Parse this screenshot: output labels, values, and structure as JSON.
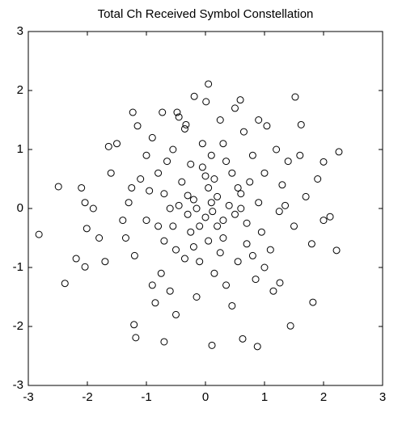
{
  "chart_data": {
    "type": "scatter",
    "title": "Total Ch Received Symbol Constellation",
    "x": [
      -2.82,
      -2.49,
      -2.38,
      -2.19,
      0.05,
      -0.19,
      0.01,
      0.59,
      1.52,
      2.26,
      2.22,
      0.11,
      0.88,
      -1.21,
      -1.18,
      -0.7,
      1.82,
      1.44,
      0.63,
      -1.23,
      -1.64,
      2.0,
      2.11,
      -2.04,
      -2.01,
      1.26,
      -0.73,
      -0.48,
      1.62,
      -0.33,
      1.04,
      -2.04,
      0.12,
      -0.3,
      0.45,
      -0.8,
      0.9,
      -0.1,
      0.3,
      -1.1,
      0.7,
      -0.5,
      1.3,
      -1.4,
      0.05,
      -0.25,
      0.6,
      -0.65,
      1.0,
      -0.9,
      0.2,
      -0.05,
      1.5,
      -1.6,
      0.35,
      -0.35,
      0.8,
      -0.75,
      1.2,
      -1.2,
      0.0,
      0.5,
      -0.45,
      0.15,
      -0.2,
      1.7,
      -1.8,
      0.25,
      -0.15,
      0.95,
      -0.95,
      0.65,
      -0.6,
      1.1,
      -1.0,
      0.4,
      -0.4,
      0.1,
      -0.1,
      0.75,
      -0.7,
      1.4,
      -1.3,
      0.55,
      -0.55,
      0.3,
      -0.3,
      1.8,
      -1.5,
      0.85,
      -0.85,
      0.2,
      -0.2,
      1.6,
      -1.7,
      0.5,
      -0.5,
      1.0,
      -1.0,
      0.0,
      0.05,
      0.7,
      -0.7,
      1.25,
      -1.25,
      0.45,
      -0.45,
      1.9,
      -1.9,
      0.9,
      -0.9,
      0.35,
      -0.35,
      1.15,
      -1.15,
      0.6,
      -0.6,
      0.25,
      -0.25,
      2.0,
      -2.1,
      0.15,
      -0.05,
      0.8,
      -0.8,
      1.35,
      -1.35,
      0.1,
      -0.15,
      0.55,
      -0.55,
      0.3
    ],
    "values": [
      -0.44,
      0.37,
      -1.27,
      -0.85,
      2.11,
      1.9,
      1.81,
      1.84,
      1.89,
      0.96,
      -0.71,
      -2.32,
      -2.34,
      -1.97,
      -2.19,
      -2.26,
      -1.59,
      -1.99,
      -2.21,
      1.63,
      1.05,
      0.79,
      -0.14,
      0.1,
      -0.34,
      -1.26,
      1.63,
      1.63,
      1.42,
      1.42,
      1.4,
      -0.99,
      -0.05,
      0.22,
      0.6,
      -0.3,
      0.1,
      -0.9,
      1.1,
      0.5,
      -0.6,
      -0.7,
      0.4,
      -0.2,
      0.35,
      -0.4,
      0.25,
      0.8,
      -1.0,
      1.2,
      -0.3,
      0.7,
      -0.3,
      0.6,
      -1.3,
      1.35,
      0.9,
      -1.1,
      1.0,
      -0.8,
      -0.15,
      -0.1,
      0.05,
      0.5,
      -0.65,
      0.2,
      -0.5,
      1.5,
      -1.5,
      -0.4,
      0.3,
      1.3,
      -1.4,
      -0.7,
      0.9,
      0.05,
      0.45,
      0.9,
      -0.3,
      0.45,
      -0.55,
      0.8,
      0.1,
      -0.9,
      1.0,
      -0.5,
      -0.1,
      -0.6,
      1.1,
      -1.2,
      -1.6,
      0.2,
      0.15,
      0.9,
      -0.9,
      1.7,
      -1.8,
      0.6,
      -0.2,
      0.55,
      -0.55,
      -0.25,
      0.25,
      -0.05,
      0.35,
      -1.65,
      1.55,
      0.5,
      0.0,
      1.5,
      -1.3,
      0.8,
      -0.85,
      -1.4,
      1.4,
      0.0,
      0.0,
      -0.75,
      0.75,
      -0.2,
      0.35,
      -1.1,
      1.1,
      -0.8,
      0.6,
      0.05,
      -0.5,
      0.1,
      0.0,
      0.35,
      -0.3,
      -0.2
    ],
    "xlim": [
      -3,
      3
    ],
    "ylim": [
      -3,
      3
    ],
    "xticks": [
      -3,
      -2,
      -1,
      0,
      1,
      2,
      3
    ],
    "yticks": [
      -3,
      -2,
      -1,
      0,
      1,
      2,
      3
    ],
    "color": "#000000"
  }
}
